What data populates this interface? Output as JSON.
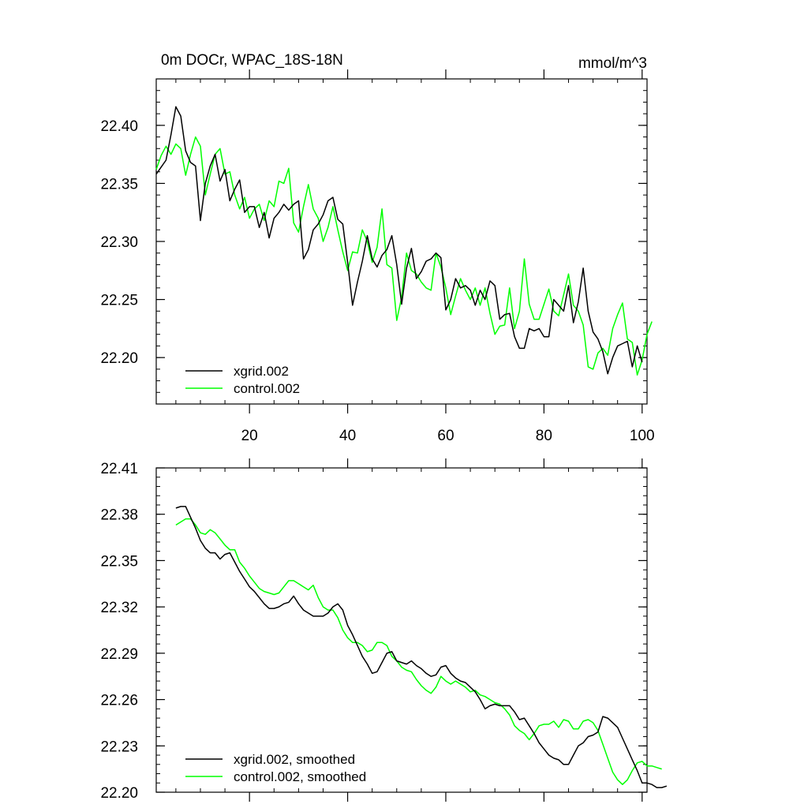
{
  "chart_data": [
    {
      "type": "line",
      "title_left": "0m DOCr, WPAC_18S-18N",
      "title_right": "mmol/m^3",
      "xlabel": "",
      "ylabel": "",
      "xlim": [
        1,
        101
      ],
      "ylim": [
        22.16,
        22.44
      ],
      "x_ticks": [
        20,
        40,
        60,
        80,
        100
      ],
      "y_ticks": [
        22.2,
        22.25,
        22.3,
        22.35,
        22.4
      ],
      "y_tick_labels": [
        "22.20",
        "22.25",
        "22.30",
        "22.35",
        "22.40"
      ],
      "x_tick_labels": [
        "20",
        "40",
        "60",
        "80",
        "100"
      ],
      "legend_position": "bottom-left",
      "series": [
        {
          "name": "xgrid.002",
          "color": "#000000",
          "x_start": 1,
          "values": [
            22.358,
            22.364,
            22.37,
            22.392,
            22.416,
            22.408,
            22.378,
            22.368,
            22.365,
            22.318,
            22.35,
            22.365,
            22.375,
            22.352,
            22.362,
            22.335,
            22.345,
            22.353,
            22.325,
            22.33,
            22.33,
            22.312,
            22.325,
            22.303,
            22.32,
            22.325,
            22.332,
            22.327,
            22.332,
            22.335,
            22.285,
            22.293,
            22.31,
            22.315,
            22.323,
            22.335,
            22.338,
            22.319,
            22.315,
            22.282,
            22.245,
            22.265,
            22.283,
            22.305,
            22.285,
            22.278,
            22.288,
            22.293,
            22.305,
            22.28,
            22.246,
            22.277,
            22.294,
            22.268,
            22.274,
            22.283,
            22.285,
            22.29,
            22.286,
            22.241,
            22.25,
            22.268,
            22.26,
            22.262,
            22.258,
            22.245,
            22.258,
            22.25,
            22.266,
            22.262,
            22.233,
            22.237,
            22.238,
            22.218,
            22.208,
            22.208,
            22.225,
            22.223,
            22.225,
            22.218,
            22.218,
            22.25,
            22.245,
            22.24,
            22.262,
            22.23,
            22.248,
            22.277,
            22.24,
            22.222,
            22.216,
            22.205,
            22.186,
            22.2,
            22.21,
            22.212,
            22.214,
            22.192,
            22.21,
            22.196
          ]
        },
        {
          "name": "control.002",
          "color": "#00ff00",
          "x_start": 1,
          "values": [
            22.362,
            22.374,
            22.382,
            22.375,
            22.384,
            22.38,
            22.357,
            22.375,
            22.39,
            22.382,
            22.34,
            22.358,
            22.375,
            22.38,
            22.358,
            22.36,
            22.34,
            22.328,
            22.338,
            22.32,
            22.328,
            22.332,
            22.318,
            22.335,
            22.33,
            22.352,
            22.35,
            22.363,
            22.316,
            22.308,
            22.33,
            22.349,
            22.328,
            22.32,
            22.3,
            22.312,
            22.33,
            22.31,
            22.291,
            22.275,
            22.291,
            22.29,
            22.31,
            22.3,
            22.282,
            22.295,
            22.328,
            22.28,
            22.277,
            22.232,
            22.252,
            22.29,
            22.275,
            22.272,
            22.265,
            22.26,
            22.258,
            22.29,
            22.278,
            22.26,
            22.237,
            22.253,
            22.268,
            22.258,
            22.25,
            22.26,
            22.245,
            22.26,
            22.238,
            22.22,
            22.227,
            22.228,
            22.26,
            22.225,
            22.24,
            22.285,
            22.246,
            22.233,
            22.233,
            22.246,
            22.259,
            22.24,
            22.236,
            22.254,
            22.272,
            22.245,
            22.24,
            22.228,
            22.192,
            22.19,
            22.204,
            22.208,
            22.202,
            22.225,
            22.237,
            22.247,
            22.216,
            22.213,
            22.185,
            22.198,
            22.22,
            22.231
          ]
        }
      ]
    },
    {
      "type": "line",
      "title_left": "",
      "title_right": "",
      "xlabel": "",
      "ylabel": "",
      "xlim": [
        1,
        101
      ],
      "ylim": [
        22.2,
        22.41
      ],
      "x_ticks": [
        20,
        40,
        60,
        80,
        100
      ],
      "y_ticks": [
        22.2,
        22.23,
        22.26,
        22.29,
        22.32,
        22.35,
        22.38,
        22.41
      ],
      "y_tick_labels": [
        "22.20",
        "22.23",
        "22.26",
        "22.29",
        "22.32",
        "22.35",
        "22.38",
        "22.41"
      ],
      "legend_position": "bottom-left",
      "series": [
        {
          "name": "xgrid.002, smoothed",
          "color": "#000000",
          "x_start": 5,
          "values": [
            22.384,
            22.385,
            22.385,
            22.378,
            22.371,
            22.363,
            22.358,
            22.355,
            22.355,
            22.351,
            22.354,
            22.355,
            22.349,
            22.343,
            22.338,
            22.333,
            22.33,
            22.326,
            22.322,
            22.319,
            22.319,
            22.32,
            22.322,
            22.323,
            22.327,
            22.322,
            22.318,
            22.316,
            22.314,
            22.314,
            22.314,
            22.316,
            22.32,
            22.322,
            22.318,
            22.308,
            22.302,
            22.295,
            22.288,
            22.283,
            22.277,
            22.278,
            22.284,
            22.29,
            22.291,
            22.285,
            22.284,
            22.283,
            22.285,
            22.282,
            22.28,
            22.277,
            22.275,
            22.276,
            22.281,
            22.282,
            22.277,
            22.274,
            22.272,
            22.271,
            22.268,
            22.265,
            22.26,
            22.254,
            22.256,
            22.257,
            22.256,
            22.256,
            22.256,
            22.252,
            22.247,
            22.248,
            22.243,
            22.238,
            22.232,
            22.228,
            22.224,
            22.222,
            22.221,
            22.218,
            22.218,
            22.224,
            22.23,
            22.232,
            22.236,
            22.237,
            22.239,
            22.249,
            22.248,
            22.245,
            22.242,
            22.235,
            22.228,
            22.221,
            22.214,
            22.206,
            22.206,
            22.205,
            22.203,
            22.203,
            22.204
          ]
        },
        {
          "name": "control.002, smoothed",
          "color": "#00ff00",
          "x_start": 5,
          "values": [
            22.373,
            22.375,
            22.377,
            22.377,
            22.373,
            22.368,
            22.367,
            22.37,
            22.368,
            22.364,
            22.36,
            22.357,
            22.357,
            22.349,
            22.345,
            22.34,
            22.336,
            22.332,
            22.33,
            22.329,
            22.328,
            22.329,
            22.333,
            22.337,
            22.337,
            22.335,
            22.333,
            22.331,
            22.334,
            22.326,
            22.32,
            22.318,
            22.318,
            22.313,
            22.305,
            22.3,
            22.297,
            22.297,
            22.295,
            22.291,
            22.292,
            22.297,
            22.297,
            22.295,
            22.288,
            22.285,
            22.281,
            22.279,
            22.278,
            22.273,
            22.269,
            22.266,
            22.264,
            22.268,
            22.275,
            22.272,
            22.27,
            22.272,
            22.27,
            22.268,
            22.265,
            22.266,
            22.263,
            22.262,
            22.26,
            22.258,
            22.257,
            22.254,
            22.25,
            22.243,
            22.24,
            22.238,
            22.234,
            22.238,
            22.243,
            22.244,
            22.244,
            22.246,
            22.242,
            22.247,
            22.246,
            22.241,
            22.241,
            22.246,
            22.247,
            22.245,
            22.24,
            22.231,
            22.222,
            22.213,
            22.208,
            22.205,
            22.208,
            22.214,
            22.219,
            22.22,
            22.217,
            22.217,
            22.216,
            22.215
          ]
        }
      ]
    }
  ]
}
